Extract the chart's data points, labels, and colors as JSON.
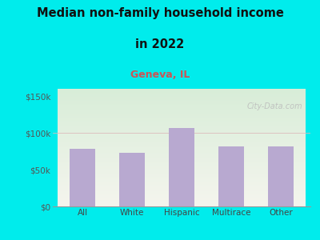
{
  "categories": [
    "All",
    "White",
    "Hispanic",
    "Multirace",
    "Other"
  ],
  "values": [
    78000,
    73000,
    107000,
    82000,
    82000
  ],
  "bar_color": "#b8a9d0",
  "title_line1": "Median non-family household income",
  "title_line2": "in 2022",
  "subtitle": "Geneva, IL",
  "subtitle_color": "#cc5555",
  "title_color": "#111111",
  "background_outer": "#00ecec",
  "background_inner_top_left": "#d8edd8",
  "background_inner_bottom_right": "#f5f5ee",
  "ylim": [
    0,
    160000
  ],
  "yticks": [
    0,
    50000,
    100000,
    150000
  ],
  "ytick_labels": [
    "$0",
    "$50k",
    "$100k",
    "$150k"
  ],
  "watermark": "City-Data.com",
  "title_fontsize": 10.5,
  "subtitle_fontsize": 9,
  "tick_fontsize": 7.5
}
